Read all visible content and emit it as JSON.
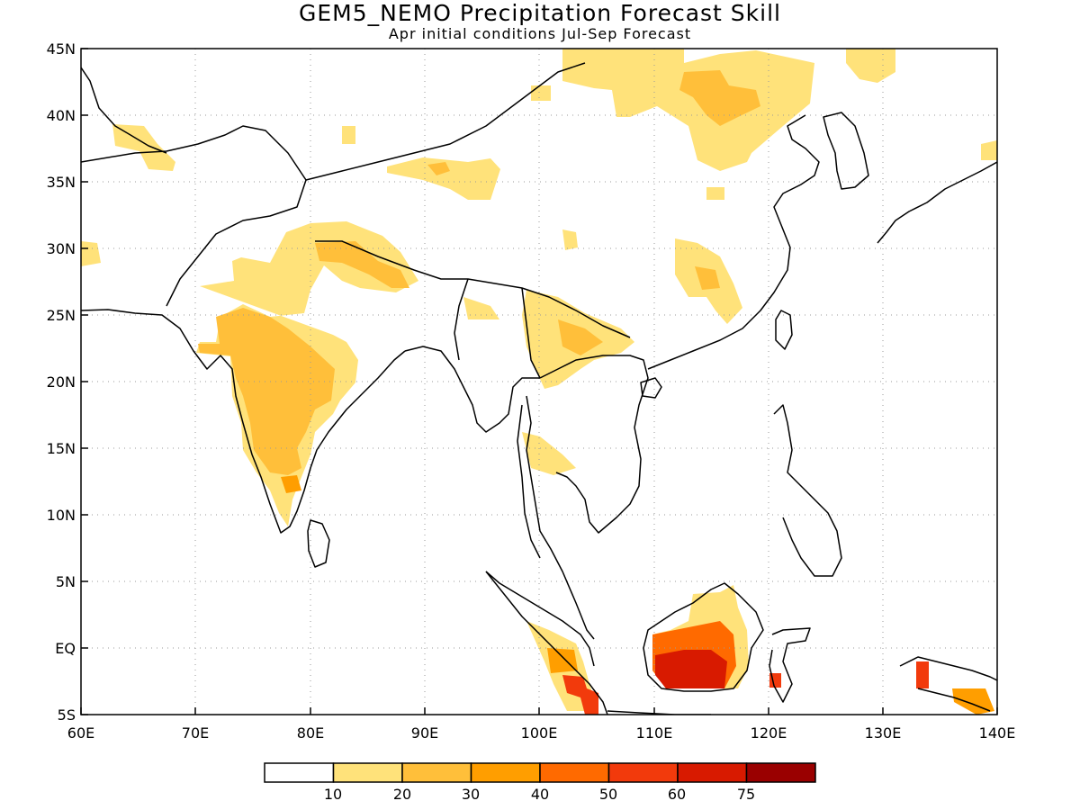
{
  "title": "GEM5_NEMO Precipitation Forecast Skill",
  "subtitle": "Apr initial conditions  Jul-Sep Forecast",
  "map": {
    "lon_range": [
      60,
      140
    ],
    "lat_range": [
      -5,
      45
    ],
    "lon_ticks": [
      "60E",
      "70E",
      "80E",
      "90E",
      "100E",
      "110E",
      "120E",
      "130E",
      "140E"
    ],
    "lat_ticks": [
      "5S",
      "EQ",
      "5N",
      "10N",
      "15N",
      "20N",
      "25N",
      "30N",
      "35N",
      "40N",
      "45N"
    ],
    "gridlines": "dotted"
  },
  "legend": {
    "colors": [
      "#ffffff",
      "#ffe27a",
      "#ffbf3a",
      "#ff9e00",
      "#ff6a00",
      "#f23a0c",
      "#d81a00",
      "#9a0000"
    ],
    "labels": [
      "10",
      "20",
      "30",
      "40",
      "50",
      "60",
      "75"
    ]
  }
}
